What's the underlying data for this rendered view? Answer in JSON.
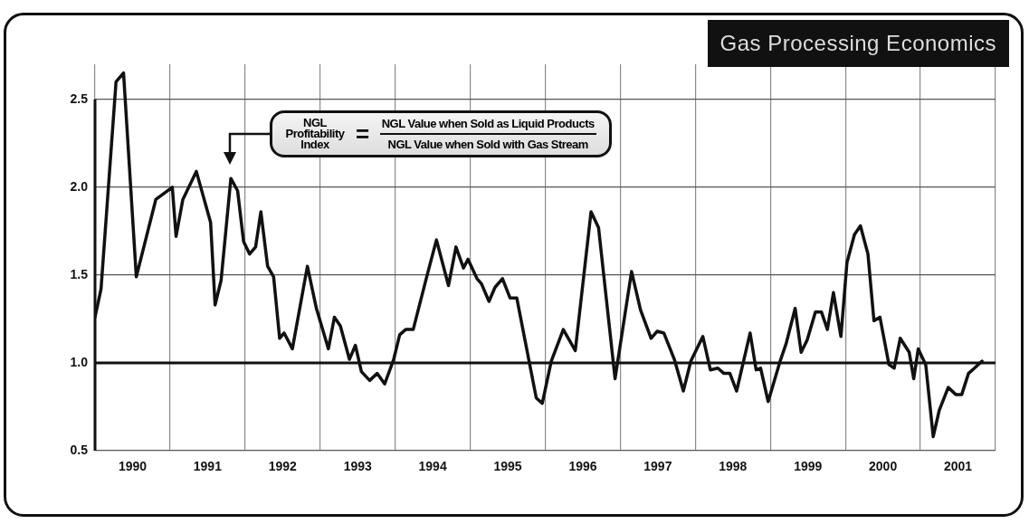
{
  "chart_data": {
    "type": "line",
    "title": "Gas Processing Economics",
    "x": [
      1990.0,
      1990.08,
      1990.28,
      1990.38,
      1990.55,
      1990.81,
      1991.03,
      1991.08,
      1991.17,
      1991.35,
      1991.54,
      1991.6,
      1991.68,
      1991.81,
      1991.9,
      1991.98,
      1992.06,
      1992.14,
      1992.21,
      1992.3,
      1992.38,
      1992.46,
      1992.52,
      1992.63,
      1992.83,
      1992.95,
      1993.11,
      1993.19,
      1993.27,
      1993.39,
      1993.47,
      1993.55,
      1993.66,
      1993.76,
      1993.86,
      1993.98,
      1994.06,
      1994.14,
      1994.24,
      1994.42,
      1994.55,
      1994.71,
      1994.81,
      1994.91,
      1994.97,
      1995.09,
      1995.15,
      1995.25,
      1995.33,
      1995.43,
      1995.53,
      1995.62,
      1995.88,
      1995.96,
      1996.08,
      1996.24,
      1996.4,
      1996.61,
      1996.71,
      1996.93,
      1997.15,
      1997.27,
      1997.41,
      1997.49,
      1997.58,
      1997.72,
      1997.84,
      1997.94,
      1998.1,
      1998.2,
      1998.3,
      1998.38,
      1998.46,
      1998.55,
      1998.73,
      1998.81,
      1998.87,
      1998.97,
      1999.13,
      1999.21,
      1999.33,
      1999.41,
      1999.49,
      1999.6,
      1999.68,
      1999.76,
      1999.84,
      1999.94,
      2000.02,
      2000.12,
      2000.2,
      2000.3,
      2000.38,
      2000.46,
      2000.58,
      2000.65,
      2000.73,
      2000.85,
      2000.91,
      2000.97,
      2001.07,
      2001.17,
      2001.25,
      2001.37,
      2001.47,
      2001.55,
      2001.64,
      2001.72,
      2001.82
    ],
    "series": [
      {
        "color": "#111111",
        "values": [
          1.26,
          1.42,
          2.6,
          2.65,
          1.49,
          1.93,
          2.0,
          1.72,
          1.93,
          2.09,
          1.8,
          1.33,
          1.47,
          2.05,
          1.98,
          1.69,
          1.62,
          1.66,
          1.86,
          1.55,
          1.49,
          1.14,
          1.17,
          1.08,
          1.55,
          1.31,
          1.08,
          1.26,
          1.21,
          1.02,
          1.1,
          0.95,
          0.9,
          0.94,
          0.88,
          1.02,
          1.16,
          1.19,
          1.19,
          1.49,
          1.7,
          1.44,
          1.66,
          1.54,
          1.59,
          1.48,
          1.45,
          1.35,
          1.43,
          1.48,
          1.37,
          1.37,
          0.8,
          0.77,
          1.01,
          1.19,
          1.07,
          1.86,
          1.77,
          0.91,
          1.52,
          1.3,
          1.14,
          1.18,
          1.17,
          1.02,
          0.84,
          1.01,
          1.15,
          0.96,
          0.97,
          0.94,
          0.94,
          0.84,
          1.17,
          0.96,
          0.97,
          0.78,
          1.01,
          1.11,
          1.31,
          1.06,
          1.13,
          1.29,
          1.29,
          1.19,
          1.4,
          1.15,
          1.57,
          1.73,
          1.78,
          1.62,
          1.24,
          1.26,
          0.99,
          0.97,
          1.14,
          1.06,
          0.91,
          1.08,
          0.99,
          0.58,
          0.73,
          0.86,
          0.82,
          0.82,
          0.94,
          0.97,
          1.01
        ]
      }
    ],
    "xlim": [
      1990,
      2002
    ],
    "xticks": [
      {
        "value": 1990,
        "label": null
      },
      {
        "value": 1990.5,
        "label": "1990"
      },
      {
        "value": 1991,
        "label": null
      },
      {
        "value": 1991.5,
        "label": "1991"
      },
      {
        "value": 1992,
        "label": null
      },
      {
        "value": 1992.5,
        "label": "1992"
      },
      {
        "value": 1993,
        "label": null
      },
      {
        "value": 1993.5,
        "label": "1993"
      },
      {
        "value": 1994,
        "label": null
      },
      {
        "value": 1994.5,
        "label": "1994"
      },
      {
        "value": 1995,
        "label": null
      },
      {
        "value": 1995.5,
        "label": "1995"
      },
      {
        "value": 1996,
        "label": null
      },
      {
        "value": 1996.5,
        "label": "1996"
      },
      {
        "value": 1997,
        "label": null
      },
      {
        "value": 1997.5,
        "label": "1997"
      },
      {
        "value": 1998,
        "label": null
      },
      {
        "value": 1998.5,
        "label": "1998"
      },
      {
        "value": 1999,
        "label": null
      },
      {
        "value": 1999.5,
        "label": "1999"
      },
      {
        "value": 2000,
        "label": null
      },
      {
        "value": 2000.5,
        "label": "2000"
      },
      {
        "value": 2001,
        "label": null
      },
      {
        "value": 2001.5,
        "label": "2001"
      },
      {
        "value": 2002,
        "label": null
      }
    ],
    "ylim": [
      0.5,
      2.7
    ],
    "yticks": [
      0.5,
      {
        "value": 1,
        "label": "1.0"
      },
      1.5,
      {
        "value": 2,
        "label": "2.0"
      },
      2.5
    ],
    "ref_lines": [
      {
        "axis": "y",
        "value": 1,
        "color": "#111111"
      }
    ],
    "annotations": [
      "NGL Profitability Index",
      "=",
      "NGL Value when Sold as Liquid Products",
      "NGL Value when Sold with Gas Stream"
    ],
    "grid": true,
    "legend": false,
    "marker": "none",
    "line_style": "solid"
  }
}
